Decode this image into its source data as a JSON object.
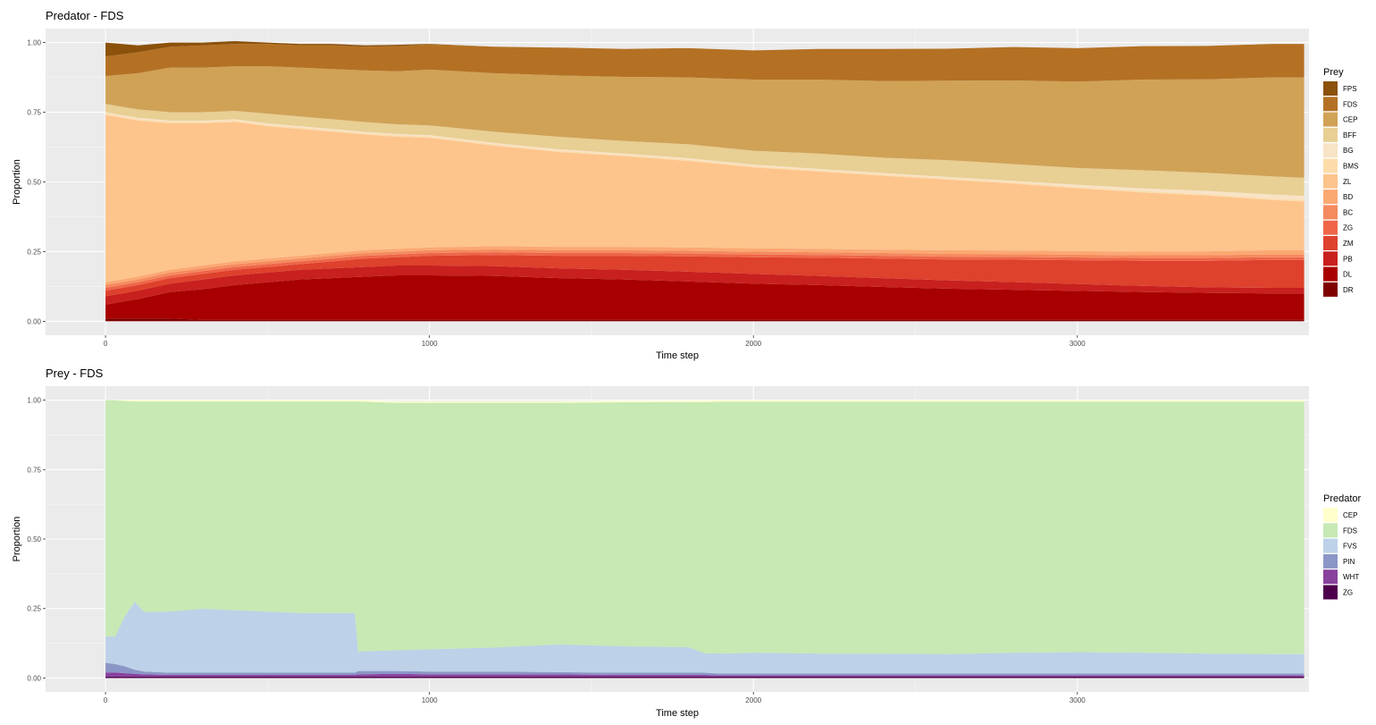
{
  "chart_data": [
    {
      "type": "area",
      "title": "Predator - FDS",
      "xlabel": "Time step",
      "ylabel": "Proportion",
      "xlim": [
        -185,
        3715
      ],
      "ylim": [
        -0.05,
        1.05
      ],
      "x_ticks": [
        0,
        1000,
        2000,
        3000
      ],
      "y_ticks": [
        0.0,
        0.25,
        0.5,
        0.75,
        1.0
      ],
      "y_tick_labels": [
        "0.00",
        "0.25",
        "0.50",
        "0.75",
        "1.00"
      ],
      "grid": true,
      "legend": {
        "title": "Prey",
        "position": "right",
        "entries": [
          {
            "label": "FPS",
            "color": "#8c510a"
          },
          {
            "label": "FDS",
            "color": "#b47124"
          },
          {
            "label": "CEP",
            "color": "#d0a256"
          },
          {
            "label": "BFF",
            "color": "#e8cf93"
          },
          {
            "label": "BG",
            "color": "#f8e3c6"
          },
          {
            "label": "BMS",
            "color": "#fddcaa"
          },
          {
            "label": "ZL",
            "color": "#fdc48c"
          },
          {
            "label": "BD",
            "color": "#fca872"
          },
          {
            "label": "BC",
            "color": "#f58a5e"
          },
          {
            "label": "ZG",
            "color": "#ef6548"
          },
          {
            "label": "ZM",
            "color": "#de412c"
          },
          {
            "label": "PB",
            "color": "#c8201e"
          },
          {
            "label": "DL",
            "color": "#a80000"
          },
          {
            "label": "DR",
            "color": "#7f0000"
          }
        ]
      },
      "x": [
        0,
        100,
        200,
        300,
        400,
        500,
        600,
        700,
        800,
        900,
        1000,
        1200,
        1400,
        1600,
        1800,
        2000,
        2200,
        2400,
        2600,
        2800,
        3000,
        3200,
        3400,
        3600,
        3700
      ],
      "series": [
        {
          "name": "DR",
          "values": [
            0.01,
            0.01,
            0.01,
            0.005,
            0.005,
            0.005,
            0.005,
            0.005,
            0.005,
            0.005,
            0.005,
            0.005,
            0.005,
            0.005,
            0.005,
            0.005,
            0.005,
            0.005,
            0.005,
            0.005,
            0.005,
            0.005,
            0.005,
            0.005,
            0.005
          ]
        },
        {
          "name": "DL",
          "values": [
            0.05,
            0.07,
            0.095,
            0.11,
            0.125,
            0.135,
            0.145,
            0.15,
            0.155,
            0.16,
            0.16,
            0.158,
            0.15,
            0.145,
            0.138,
            0.13,
            0.125,
            0.118,
            0.112,
            0.108,
            0.104,
            0.1,
            0.097,
            0.095,
            0.095
          ]
        },
        {
          "name": "PB",
          "values": [
            0.03,
            0.03,
            0.03,
            0.035,
            0.035,
            0.035,
            0.035,
            0.035,
            0.035,
            0.035,
            0.035,
            0.035,
            0.035,
            0.035,
            0.035,
            0.035,
            0.033,
            0.032,
            0.03,
            0.028,
            0.025,
            0.022,
            0.02,
            0.02,
            0.02
          ]
        },
        {
          "name": "ZM",
          "values": [
            0.02,
            0.02,
            0.02,
            0.02,
            0.02,
            0.02,
            0.02,
            0.025,
            0.03,
            0.03,
            0.035,
            0.04,
            0.045,
            0.05,
            0.055,
            0.06,
            0.065,
            0.07,
            0.075,
            0.08,
            0.085,
            0.09,
            0.095,
            0.1,
            0.1
          ]
        },
        {
          "name": "ZG",
          "values": [
            0.01,
            0.01,
            0.01,
            0.01,
            0.01,
            0.01,
            0.01,
            0.01,
            0.01,
            0.01,
            0.01,
            0.01,
            0.01,
            0.01,
            0.01,
            0.01,
            0.01,
            0.01,
            0.01,
            0.01,
            0.01,
            0.01,
            0.01,
            0.01,
            0.01
          ]
        },
        {
          "name": "BC",
          "values": [
            0.01,
            0.01,
            0.01,
            0.01,
            0.01,
            0.01,
            0.01,
            0.01,
            0.01,
            0.01,
            0.01,
            0.01,
            0.01,
            0.01,
            0.01,
            0.01,
            0.01,
            0.01,
            0.01,
            0.01,
            0.01,
            0.01,
            0.01,
            0.01,
            0.01
          ]
        },
        {
          "name": "BD",
          "values": [
            0.01,
            0.01,
            0.01,
            0.01,
            0.01,
            0.01,
            0.01,
            0.01,
            0.01,
            0.01,
            0.01,
            0.012,
            0.012,
            0.012,
            0.012,
            0.012,
            0.012,
            0.012,
            0.013,
            0.013,
            0.013,
            0.013,
            0.014,
            0.015,
            0.015
          ]
        },
        {
          "name": "ZL",
          "values": [
            0.6,
            0.56,
            0.525,
            0.51,
            0.5,
            0.475,
            0.455,
            0.435,
            0.415,
            0.402,
            0.393,
            0.36,
            0.34,
            0.325,
            0.31,
            0.29,
            0.277,
            0.265,
            0.253,
            0.24,
            0.225,
            0.212,
            0.2,
            0.18,
            0.175
          ]
        },
        {
          "name": "BMS",
          "values": [
            0.005,
            0.005,
            0.005,
            0.005,
            0.005,
            0.005,
            0.005,
            0.005,
            0.005,
            0.005,
            0.005,
            0.005,
            0.005,
            0.005,
            0.005,
            0.005,
            0.005,
            0.005,
            0.005,
            0.005,
            0.005,
            0.005,
            0.005,
            0.005,
            0.005
          ]
        },
        {
          "name": "BG",
          "values": [
            0.005,
            0.005,
            0.005,
            0.005,
            0.005,
            0.005,
            0.005,
            0.005,
            0.005,
            0.005,
            0.005,
            0.005,
            0.005,
            0.005,
            0.005,
            0.005,
            0.005,
            0.005,
            0.005,
            0.005,
            0.008,
            0.01,
            0.012,
            0.015,
            0.015
          ]
        },
        {
          "name": "BFF",
          "values": [
            0.03,
            0.03,
            0.03,
            0.03,
            0.03,
            0.035,
            0.035,
            0.035,
            0.035,
            0.035,
            0.035,
            0.04,
            0.045,
            0.045,
            0.05,
            0.05,
            0.055,
            0.055,
            0.06,
            0.06,
            0.06,
            0.065,
            0.065,
            0.065,
            0.065
          ]
        },
        {
          "name": "CEP",
          "values": [
            0.1,
            0.13,
            0.16,
            0.16,
            0.16,
            0.17,
            0.175,
            0.18,
            0.185,
            0.19,
            0.2,
            0.21,
            0.22,
            0.23,
            0.24,
            0.255,
            0.265,
            0.275,
            0.285,
            0.3,
            0.31,
            0.325,
            0.335,
            0.355,
            0.36
          ]
        },
        {
          "name": "FDS",
          "values": [
            0.07,
            0.075,
            0.075,
            0.08,
            0.08,
            0.08,
            0.08,
            0.085,
            0.085,
            0.09,
            0.09,
            0.095,
            0.1,
            0.1,
            0.105,
            0.105,
            0.11,
            0.115,
            0.115,
            0.12,
            0.12,
            0.12,
            0.12,
            0.12,
            0.12
          ]
        },
        {
          "name": "FPS",
          "values": [
            0.05,
            0.025,
            0.015,
            0.01,
            0.01,
            0.005,
            0.005,
            0.005,
            0.005,
            0.005,
            0.002,
            0.0,
            0.0,
            0.0,
            0.0,
            0.0,
            0.0,
            0.0,
            0.0,
            0.0,
            0.0,
            0.0,
            0.0,
            0.0,
            0.0
          ]
        }
      ]
    },
    {
      "type": "area",
      "title": "Prey - FDS",
      "xlabel": "Time step",
      "ylabel": "Proportion",
      "xlim": [
        -185,
        3715
      ],
      "ylim": [
        -0.05,
        1.05
      ],
      "x_ticks": [
        0,
        1000,
        2000,
        3000
      ],
      "y_ticks": [
        0.0,
        0.25,
        0.5,
        0.75,
        1.0
      ],
      "y_tick_labels": [
        "0.00",
        "0.25",
        "0.50",
        "0.75",
        "1.00"
      ],
      "grid": true,
      "legend": {
        "title": "Predator",
        "position": "right",
        "entries": [
          {
            "label": "CEP",
            "color": "#ffffcc"
          },
          {
            "label": "FDS",
            "color": "#c7e9b4"
          },
          {
            "label": "FVS",
            "color": "#bdd1e8"
          },
          {
            "label": "PIN",
            "color": "#8c96c6"
          },
          {
            "label": "WHT",
            "color": "#88419d"
          },
          {
            "label": "ZG",
            "color": "#4d004b"
          }
        ]
      },
      "x": [
        0,
        30,
        60,
        90,
        120,
        200,
        300,
        400,
        500,
        600,
        700,
        770,
        780,
        900,
        1000,
        1200,
        1400,
        1600,
        1800,
        1850,
        1900,
        2000,
        2200,
        2400,
        2600,
        2800,
        3000,
        3200,
        3400,
        3600,
        3700
      ],
      "series": [
        {
          "name": "ZG",
          "values": [
            0.005,
            0.005,
            0.005,
            0.005,
            0.005,
            0.005,
            0.005,
            0.005,
            0.005,
            0.005,
            0.005,
            0.005,
            0.005,
            0.005,
            0.005,
            0.005,
            0.005,
            0.005,
            0.005,
            0.005,
            0.005,
            0.005,
            0.005,
            0.005,
            0.005,
            0.005,
            0.005,
            0.005,
            0.005,
            0.005,
            0.005
          ]
        },
        {
          "name": "WHT",
          "values": [
            0.015,
            0.015,
            0.012,
            0.01,
            0.008,
            0.006,
            0.006,
            0.006,
            0.006,
            0.006,
            0.006,
            0.006,
            0.008,
            0.01,
            0.008,
            0.008,
            0.008,
            0.006,
            0.006,
            0.006,
            0.005,
            0.005,
            0.005,
            0.005,
            0.005,
            0.005,
            0.005,
            0.005,
            0.005,
            0.005,
            0.005
          ]
        },
        {
          "name": "PIN",
          "values": [
            0.035,
            0.03,
            0.025,
            0.015,
            0.01,
            0.008,
            0.008,
            0.008,
            0.008,
            0.008,
            0.008,
            0.008,
            0.012,
            0.01,
            0.01,
            0.01,
            0.008,
            0.008,
            0.008,
            0.008,
            0.006,
            0.006,
            0.006,
            0.006,
            0.006,
            0.006,
            0.006,
            0.006,
            0.006,
            0.006,
            0.006
          ]
        },
        {
          "name": "FVS",
          "values": [
            0.095,
            0.1,
            0.18,
            0.245,
            0.215,
            0.22,
            0.23,
            0.225,
            0.22,
            0.215,
            0.215,
            0.215,
            0.07,
            0.075,
            0.08,
            0.087,
            0.1,
            0.095,
            0.092,
            0.07,
            0.072,
            0.075,
            0.072,
            0.072,
            0.07,
            0.075,
            0.077,
            0.075,
            0.072,
            0.07,
            0.07
          ]
        },
        {
          "name": "FDS",
          "values": [
            0.85,
            0.85,
            0.775,
            0.72,
            0.757,
            0.756,
            0.746,
            0.751,
            0.756,
            0.761,
            0.761,
            0.761,
            0.9,
            0.89,
            0.887,
            0.88,
            0.869,
            0.878,
            0.882,
            0.904,
            0.906,
            0.903,
            0.906,
            0.906,
            0.908,
            0.903,
            0.901,
            0.903,
            0.906,
            0.908,
            0.908
          ]
        },
        {
          "name": "CEP",
          "values": [
            0.0,
            0.0,
            0.003,
            0.005,
            0.005,
            0.005,
            0.005,
            0.005,
            0.005,
            0.005,
            0.005,
            0.005,
            0.005,
            0.005,
            0.005,
            0.005,
            0.005,
            0.005,
            0.005,
            0.005,
            0.006,
            0.006,
            0.006,
            0.006,
            0.006,
            0.006,
            0.006,
            0.006,
            0.006,
            0.006,
            0.006
          ]
        }
      ]
    }
  ]
}
